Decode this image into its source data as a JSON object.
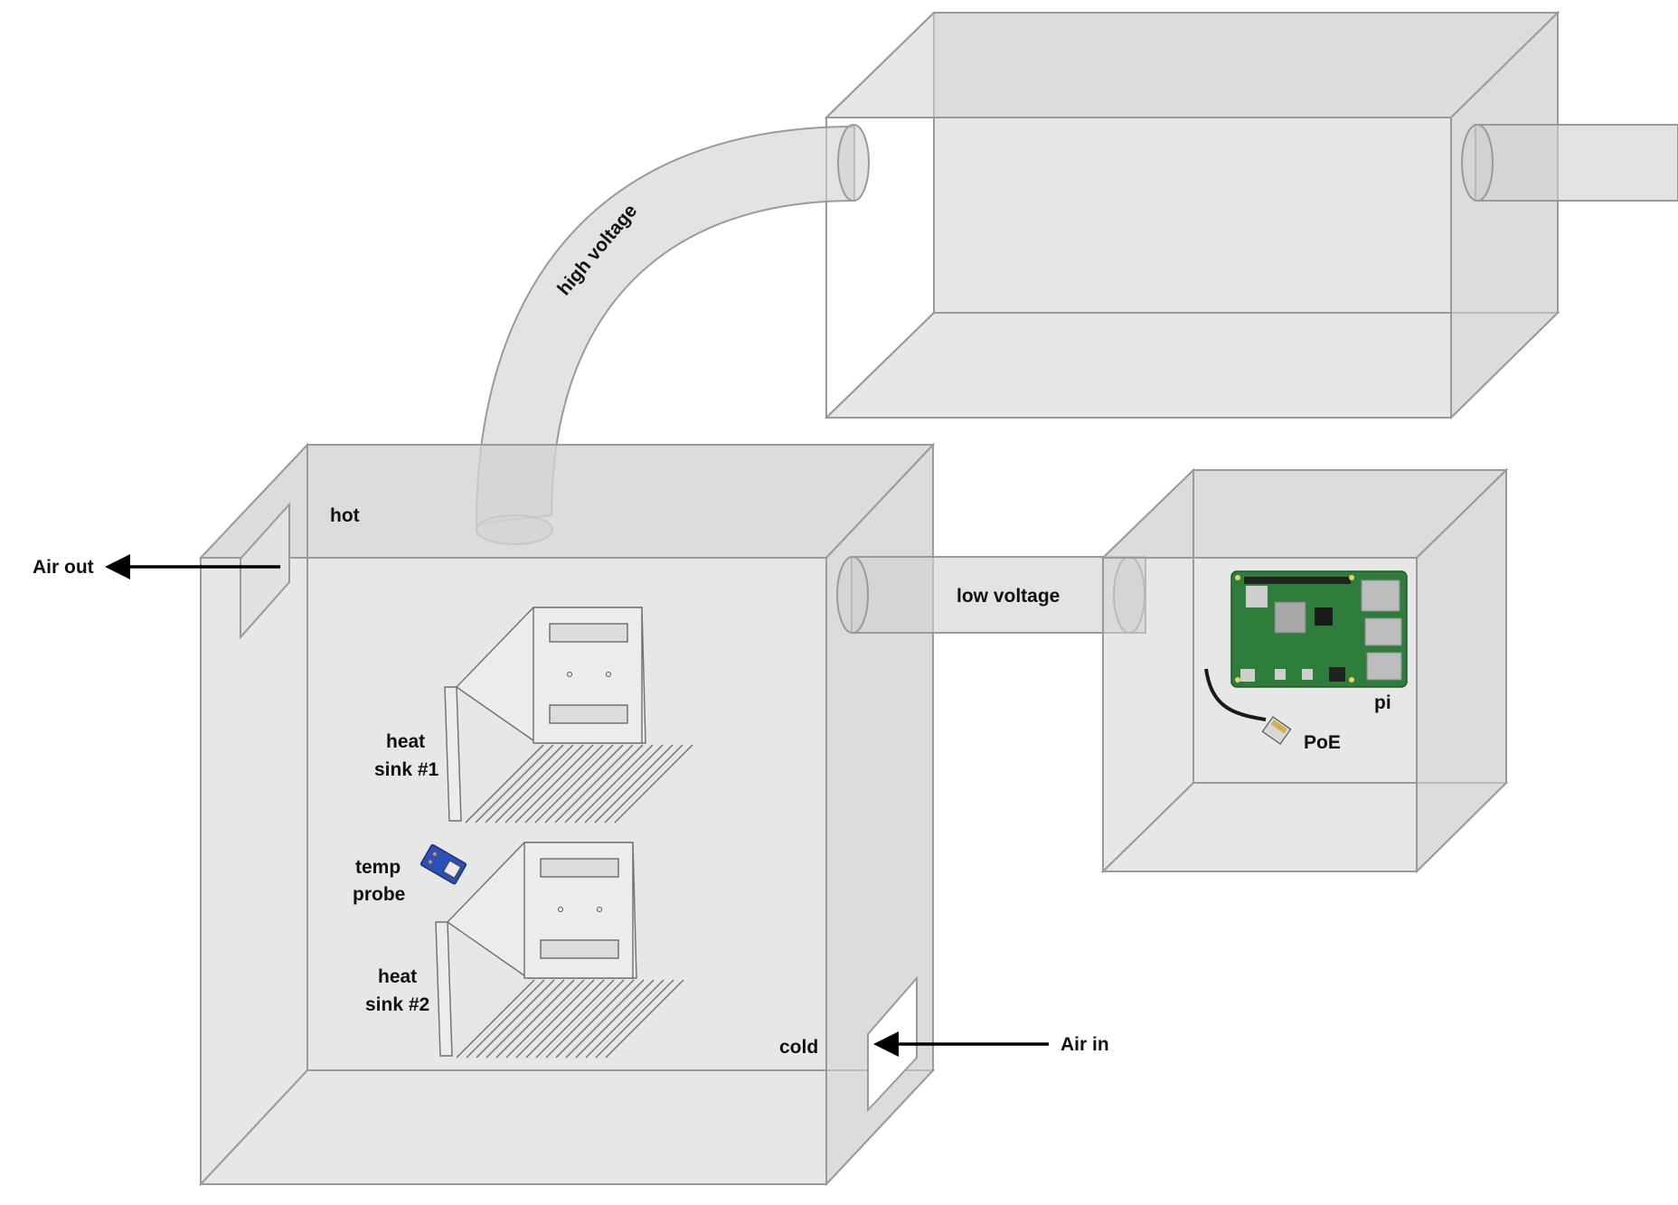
{
  "labels": {
    "air_out": "Air out",
    "air_in": "Air in",
    "hot": "hot",
    "cold": "cold",
    "high_voltage": "high voltage",
    "low_voltage": "low voltage",
    "heat_sink_1_line1": "heat",
    "heat_sink_1_line2": "sink #1",
    "heat_sink_2_line1": "heat",
    "heat_sink_2_line2": "sink #2",
    "temp_probe_line1": "temp",
    "temp_probe_line2": "probe",
    "pi": "pi",
    "poe": "PoE"
  },
  "colors": {
    "box": "#d4d4d4",
    "edge": "#9a9a9a",
    "board": "#2f7d3a",
    "probe": "#2c4fb8",
    "arrow": "#000000"
  },
  "icons": [
    "raspberry-pi-board-icon",
    "ethernet-cable-icon",
    "temp-probe-icon",
    "heat-sink-icon"
  ]
}
